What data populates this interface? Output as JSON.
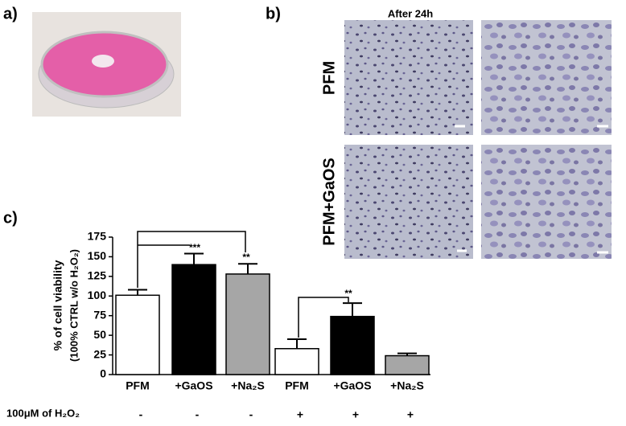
{
  "panel_labels": [
    "a)",
    "b)",
    "c)"
  ],
  "micrographs": {
    "title": "After 24h",
    "rows": [
      "PFM",
      "PFM+GaOS"
    ]
  },
  "chart_data": {
    "type": "bar",
    "y_label": [
      "% of cell viability",
      "(100% CTRL w/o H₂O₂)"
    ],
    "categories": [
      "PFM",
      "+GaOS",
      "+Na₂S",
      "PFM",
      "+GaOS",
      "+Na₂S"
    ],
    "values": [
      101,
      140,
      128,
      33,
      74,
      24
    ],
    "errors": [
      7,
      14,
      13,
      12,
      17,
      3
    ],
    "colors": [
      "#ffffff",
      "#000000",
      "#a6a6a6",
      "#ffffff",
      "#000000",
      "#a6a6a6"
    ],
    "ylim": [
      0,
      175
    ],
    "yticks": [
      0,
      25,
      50,
      75,
      100,
      125,
      150,
      175
    ],
    "annotations": [
      "***",
      "**",
      "**"
    ],
    "treatment": {
      "label": "100μM of H₂O₂",
      "values": [
        "-",
        "-",
        "-",
        "+",
        "+",
        "+"
      ]
    }
  }
}
